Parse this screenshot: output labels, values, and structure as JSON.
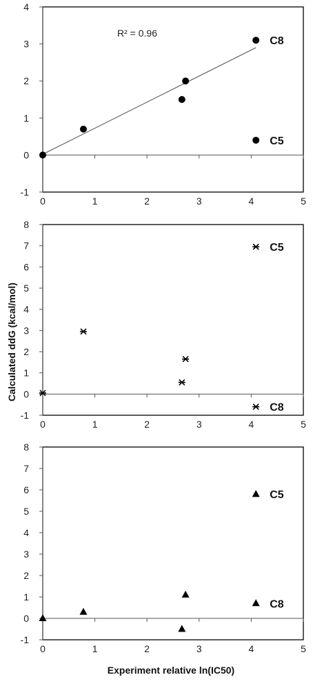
{
  "figure": {
    "ylabel": "Calculated ddG (kcal/mol)",
    "xlabel": "Experiment relative ln(IC50)"
  },
  "chart_data": [
    {
      "type": "scatter",
      "marker": "circle",
      "xlim": [
        0,
        5
      ],
      "ylim": [
        -1,
        4
      ],
      "x_ticks": [
        "0",
        "1",
        "2",
        "3",
        "4",
        "5"
      ],
      "y_ticks": [
        "-1",
        "0",
        "1",
        "2",
        "3",
        "4"
      ],
      "points": [
        {
          "x": 0,
          "y": 0
        },
        {
          "x": 0.78,
          "y": 0.7
        },
        {
          "x": 2.67,
          "y": 1.5
        },
        {
          "x": 2.74,
          "y": 2.0
        },
        {
          "x": 4.09,
          "y": 3.1
        },
        {
          "x": 4.09,
          "y": 0.4
        }
      ],
      "trendline": {
        "x0": 0,
        "y0": 0.02,
        "x1": 4.09,
        "y1": 2.9
      },
      "annotation": "R² = 0.96",
      "point_labels": [
        {
          "text": "C8",
          "x": 4.09,
          "y": 3.1
        },
        {
          "text": "C5",
          "x": 4.09,
          "y": 0.4
        }
      ]
    },
    {
      "type": "scatter",
      "marker": "asterisk",
      "xlim": [
        0,
        5
      ],
      "ylim": [
        -1,
        8
      ],
      "x_ticks": [
        "0",
        "1",
        "2",
        "3",
        "4",
        "5"
      ],
      "y_ticks": [
        "-1",
        "0",
        "1",
        "2",
        "3",
        "4",
        "5",
        "6",
        "7",
        "8"
      ],
      "points": [
        {
          "x": 0,
          "y": 0.05
        },
        {
          "x": 0.78,
          "y": 2.95
        },
        {
          "x": 2.67,
          "y": 0.55
        },
        {
          "x": 2.74,
          "y": 1.65
        },
        {
          "x": 4.09,
          "y": 6.95
        },
        {
          "x": 4.09,
          "y": -0.6
        }
      ],
      "point_labels": [
        {
          "text": "C5",
          "x": 4.09,
          "y": 6.95
        },
        {
          "text": "C8",
          "x": 4.09,
          "y": -0.6
        }
      ]
    },
    {
      "type": "scatter",
      "marker": "triangle",
      "xlim": [
        0,
        5
      ],
      "ylim": [
        -1,
        8
      ],
      "x_ticks": [
        "0",
        "1",
        "2",
        "3",
        "4",
        "5"
      ],
      "y_ticks": [
        "-1",
        "0",
        "1",
        "2",
        "3",
        "4",
        "5",
        "6",
        "7",
        "8"
      ],
      "points": [
        {
          "x": 0,
          "y": 0.0
        },
        {
          "x": 0.78,
          "y": 0.3
        },
        {
          "x": 2.67,
          "y": -0.5
        },
        {
          "x": 2.74,
          "y": 1.1
        },
        {
          "x": 4.09,
          "y": 5.8
        },
        {
          "x": 4.09,
          "y": 0.7
        }
      ],
      "point_labels": [
        {
          "text": "C5",
          "x": 4.09,
          "y": 5.8
        },
        {
          "text": "C8",
          "x": 4.09,
          "y": 0.7
        }
      ]
    }
  ]
}
